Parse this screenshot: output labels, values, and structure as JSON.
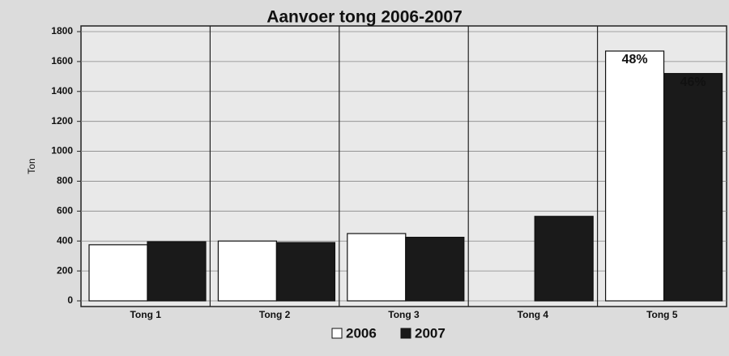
{
  "chart_data": {
    "type": "bar",
    "title": "Aanvoer tong 2006-2007",
    "y_label": "Ton",
    "categories": [
      "Tong 1",
      "Tong 2",
      "Tong 3",
      "Tong 4",
      "Tong 5"
    ],
    "series": [
      {
        "name": "2006",
        "color": "#ffffff",
        "values": [
          375,
          400,
          450,
          null,
          1670
        ]
      },
      {
        "name": "2007",
        "color": "#1a1a1a",
        "values": [
          395,
          390,
          425,
          565,
          1520
        ]
      }
    ],
    "annotations": [
      "48%",
      "46%"
    ],
    "ylim": [
      0,
      1800
    ],
    "yticks": [
      0,
      200,
      400,
      600,
      800,
      1000,
      1200,
      1400,
      1600,
      1800
    ],
    "grid": true,
    "legend": "bottom"
  }
}
